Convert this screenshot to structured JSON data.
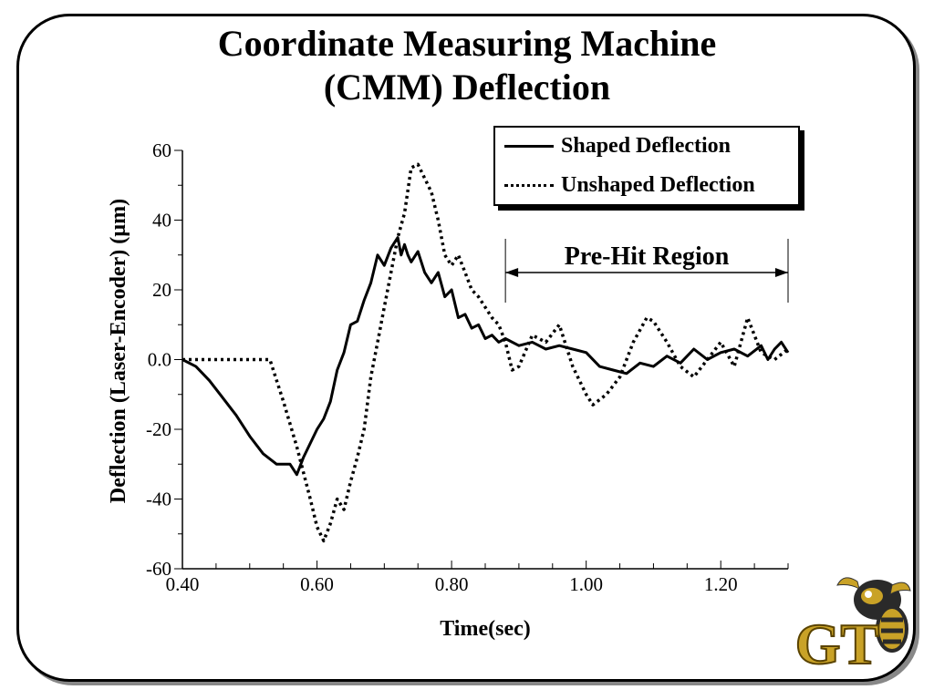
{
  "slide": {
    "title_line1": "Coordinate Measuring Machine",
    "title_line2": "(CMM) Deflection"
  },
  "colors": {
    "line": "#000000",
    "logo_gold": "#c9a227",
    "logo_dark": "#2a2a2a"
  },
  "logo": {
    "icon": "gt-yellow-jacket-logo",
    "text": "GT"
  },
  "chart_data": {
    "type": "line",
    "xlabel": "Time(sec)",
    "ylabel": "Deflection (Laser-Encoder) (µm)",
    "xlim": [
      0.4,
      1.3
    ],
    "ylim": [
      -60,
      60
    ],
    "xticks": [
      0.4,
      0.6,
      0.8,
      1.0,
      1.2
    ],
    "xtick_labels": [
      "0.40",
      "0.60",
      "0.80",
      "1.00",
      "1.20"
    ],
    "yticks": [
      60,
      40,
      20,
      0,
      -20,
      -40,
      -60
    ],
    "ytick_labels": [
      "60",
      "40",
      "20",
      "0.0",
      "-20",
      "-40",
      "-60"
    ],
    "grid": false,
    "legend_position": "top-right",
    "annotation": {
      "text": "Pre-Hit Region",
      "x_range": [
        0.88,
        1.3
      ]
    },
    "series": [
      {
        "name": "Shaped Deflection",
        "style": "solid",
        "x": [
          0.4,
          0.42,
          0.44,
          0.46,
          0.48,
          0.5,
          0.52,
          0.54,
          0.56,
          0.57,
          0.58,
          0.6,
          0.61,
          0.62,
          0.63,
          0.64,
          0.65,
          0.66,
          0.67,
          0.68,
          0.69,
          0.7,
          0.71,
          0.72,
          0.725,
          0.73,
          0.735,
          0.74,
          0.75,
          0.76,
          0.77,
          0.78,
          0.79,
          0.8,
          0.81,
          0.82,
          0.83,
          0.84,
          0.85,
          0.86,
          0.87,
          0.88,
          0.9,
          0.92,
          0.94,
          0.96,
          0.98,
          1.0,
          1.02,
          1.04,
          1.06,
          1.08,
          1.1,
          1.12,
          1.14,
          1.16,
          1.18,
          1.2,
          1.22,
          1.24,
          1.26,
          1.27,
          1.28,
          1.29,
          1.3
        ],
        "values": [
          0,
          -2,
          -6,
          -11,
          -16,
          -22,
          -27,
          -30,
          -30,
          -33,
          -28,
          -20,
          -17,
          -12,
          -3,
          2,
          10,
          11,
          17,
          22,
          30,
          27,
          32,
          35,
          30,
          33,
          30,
          28,
          31,
          25,
          22,
          25,
          18,
          20,
          12,
          13,
          9,
          10,
          6,
          7,
          5,
          6,
          4,
          5,
          3,
          4,
          3,
          2,
          -2,
          -3,
          -4,
          -1,
          -2,
          1,
          -1,
          3,
          0,
          2,
          3,
          1,
          4,
          0,
          3,
          5,
          2
        ]
      },
      {
        "name": "Unshaped Deflection",
        "style": "dotted",
        "x": [
          0.4,
          0.45,
          0.5,
          0.53,
          0.55,
          0.57,
          0.59,
          0.6,
          0.61,
          0.62,
          0.63,
          0.64,
          0.65,
          0.66,
          0.67,
          0.68,
          0.69,
          0.7,
          0.71,
          0.72,
          0.73,
          0.74,
          0.75,
          0.76,
          0.77,
          0.78,
          0.79,
          0.8,
          0.81,
          0.82,
          0.83,
          0.84,
          0.85,
          0.86,
          0.87,
          0.88,
          0.89,
          0.9,
          0.92,
          0.94,
          0.96,
          0.98,
          1.0,
          1.01,
          1.03,
          1.05,
          1.07,
          1.09,
          1.1,
          1.12,
          1.14,
          1.16,
          1.18,
          1.2,
          1.22,
          1.24,
          1.26,
          1.28,
          1.3
        ],
        "values": [
          0,
          0,
          0,
          0,
          -12,
          -25,
          -40,
          -48,
          -52,
          -47,
          -40,
          -43,
          -35,
          -28,
          -20,
          -5,
          5,
          15,
          25,
          35,
          42,
          55,
          56,
          52,
          48,
          40,
          30,
          27,
          30,
          25,
          20,
          18,
          15,
          12,
          10,
          5,
          -3,
          -2,
          7,
          5,
          10,
          -2,
          -10,
          -13,
          -10,
          -5,
          5,
          12,
          11,
          5,
          -2,
          -5,
          0,
          5,
          -2,
          12,
          2,
          0,
          3
        ]
      }
    ]
  }
}
